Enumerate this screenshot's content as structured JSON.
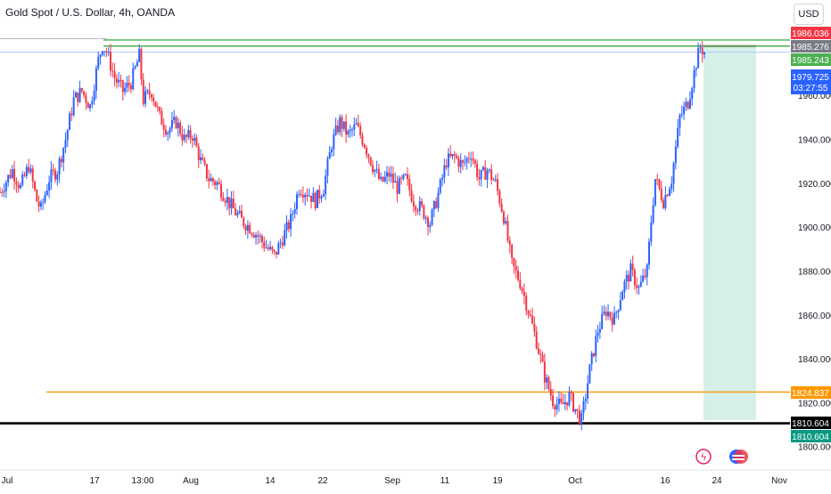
{
  "title": "Gold Spot / U.S. Dollar, 4h, OANDA",
  "currency_button": "USD",
  "colors": {
    "up": "#2962ff",
    "down": "#f23645",
    "green_line": "#4caf50",
    "orange_line": "#ff9800",
    "black_line": "#000000",
    "last_price": "#2962ff",
    "gray_label": "#787b86",
    "red_label": "#f23645",
    "target_zone": "#d2ede6",
    "grid_text": "#131722"
  },
  "chart_data": {
    "type": "candlestick",
    "title": "Gold Spot / U.S. Dollar, 4h, OANDA",
    "ylim": [
      1795,
      1997
    ],
    "y_ticks": [
      "1800.000",
      "1820.000",
      "1840.000",
      "1860.000",
      "1880.000",
      "1900.000",
      "1920.000",
      "1940.000",
      "1960.000"
    ],
    "x_ticks": [
      "Jul",
      "17",
      "13:00",
      "Aug",
      "14",
      "22",
      "Sep",
      "11",
      "19",
      "Oct",
      "16",
      "24",
      "Nov"
    ],
    "price_path": [
      {
        "t": 0,
        "p": 1916
      },
      {
        "t": 3,
        "p": 1926
      },
      {
        "t": 5,
        "p": 1918
      },
      {
        "t": 7,
        "p": 1928
      },
      {
        "t": 9,
        "p": 1912
      },
      {
        "t": 10,
        "p": 1908
      },
      {
        "t": 12,
        "p": 1922
      },
      {
        "t": 14,
        "p": 1926
      },
      {
        "t": 16,
        "p": 1940
      },
      {
        "t": 18,
        "p": 1958
      },
      {
        "t": 20,
        "p": 1962
      },
      {
        "t": 22,
        "p": 1955
      },
      {
        "t": 24,
        "p": 1976
      },
      {
        "t": 25,
        "p": 1983
      },
      {
        "t": 26,
        "p": 1980
      },
      {
        "t": 28,
        "p": 1968
      },
      {
        "t": 30,
        "p": 1962
      },
      {
        "t": 32,
        "p": 1966
      },
      {
        "t": 34,
        "p": 1978
      },
      {
        "t": 35,
        "p": 1958
      },
      {
        "t": 37,
        "p": 1962
      },
      {
        "t": 39,
        "p": 1950
      },
      {
        "t": 41,
        "p": 1944
      },
      {
        "t": 43,
        "p": 1948
      },
      {
        "t": 45,
        "p": 1940
      },
      {
        "t": 47,
        "p": 1942
      },
      {
        "t": 49,
        "p": 1930
      },
      {
        "t": 51,
        "p": 1922
      },
      {
        "t": 53,
        "p": 1920
      },
      {
        "t": 55,
        "p": 1914
      },
      {
        "t": 57,
        "p": 1908
      },
      {
        "t": 59,
        "p": 1903
      },
      {
        "t": 61,
        "p": 1900
      },
      {
        "t": 63,
        "p": 1896
      },
      {
        "t": 65,
        "p": 1891
      },
      {
        "t": 67,
        "p": 1887
      },
      {
        "t": 69,
        "p": 1895
      },
      {
        "t": 71,
        "p": 1903
      },
      {
        "t": 73,
        "p": 1918
      },
      {
        "t": 75,
        "p": 1916
      },
      {
        "t": 77,
        "p": 1912
      },
      {
        "t": 79,
        "p": 1918
      },
      {
        "t": 81,
        "p": 1938
      },
      {
        "t": 83,
        "p": 1948
      },
      {
        "t": 85,
        "p": 1942
      },
      {
        "t": 87,
        "p": 1946
      },
      {
        "t": 89,
        "p": 1938
      },
      {
        "t": 91,
        "p": 1928
      },
      {
        "t": 93,
        "p": 1920
      },
      {
        "t": 95,
        "p": 1924
      },
      {
        "t": 97,
        "p": 1918
      },
      {
        "t": 99,
        "p": 1922
      },
      {
        "t": 101,
        "p": 1912
      },
      {
        "t": 103,
        "p": 1908
      },
      {
        "t": 105,
        "p": 1902
      },
      {
        "t": 107,
        "p": 1915
      },
      {
        "t": 109,
        "p": 1930
      },
      {
        "t": 111,
        "p": 1932
      },
      {
        "t": 113,
        "p": 1928
      },
      {
        "t": 115,
        "p": 1934
      },
      {
        "t": 117,
        "p": 1922
      },
      {
        "t": 119,
        "p": 1926
      },
      {
        "t": 121,
        "p": 1920
      },
      {
        "t": 123,
        "p": 1905
      },
      {
        "t": 125,
        "p": 1883
      },
      {
        "t": 127,
        "p": 1875
      },
      {
        "t": 129,
        "p": 1862
      },
      {
        "t": 131,
        "p": 1848
      },
      {
        "t": 133,
        "p": 1832
      },
      {
        "t": 135,
        "p": 1821
      },
      {
        "t": 137,
        "p": 1818
      },
      {
        "t": 139,
        "p": 1823
      },
      {
        "t": 141,
        "p": 1815
      },
      {
        "t": 142,
        "p": 1812
      },
      {
        "t": 144,
        "p": 1835
      },
      {
        "t": 146,
        "p": 1853
      },
      {
        "t": 148,
        "p": 1862
      },
      {
        "t": 150,
        "p": 1858
      },
      {
        "t": 152,
        "p": 1872
      },
      {
        "t": 154,
        "p": 1880
      },
      {
        "t": 156,
        "p": 1872
      },
      {
        "t": 158,
        "p": 1880
      },
      {
        "t": 159,
        "p": 1903
      },
      {
        "t": 160,
        "p": 1922
      },
      {
        "t": 162,
        "p": 1912
      },
      {
        "t": 164,
        "p": 1922
      },
      {
        "t": 166,
        "p": 1950
      },
      {
        "t": 168,
        "p": 1957
      },
      {
        "t": 170,
        "p": 1975
      },
      {
        "t": 171,
        "p": 1982
      },
      {
        "t": 172,
        "p": 1979.7
      }
    ],
    "horizontal_levels": [
      {
        "value": 1986.036,
        "label": "1986.036",
        "kind": "red-label"
      },
      {
        "value": 1985.276,
        "label": "1985.276",
        "kind": "gray-label"
      },
      {
        "value": 1985.243,
        "label": "1985.243",
        "kind": "green-line"
      },
      {
        "value": 1982.5,
        "label": "",
        "kind": "green-line"
      },
      {
        "value": 1979.725,
        "label": "1979.725",
        "kind": "last-price"
      },
      {
        "value": 1824.837,
        "label": "1824.837",
        "kind": "orange-line"
      },
      {
        "value": 1810.604,
        "label": "1810.604",
        "kind": "black-line"
      },
      {
        "value": 1810.604,
        "label": "1810.604",
        "kind": "green-label"
      }
    ],
    "countdown": "03:27:55",
    "target_zone": {
      "from_price": 1982.5,
      "to_price": 1812
    }
  }
}
